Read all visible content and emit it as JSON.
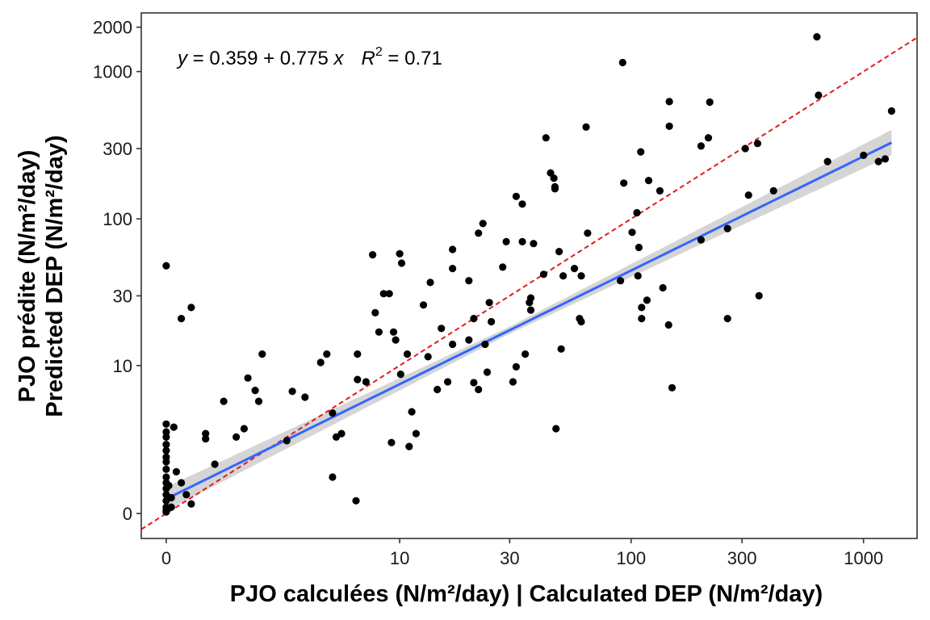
{
  "chart_data": {
    "type": "scatter",
    "title": "",
    "xlabel": "PJO calculées (N/m²/day) | Calculated DEP (N/m²/day)",
    "ylabel_line1": "PJO prédite (N/m²/day)",
    "ylabel_line2": "Predicted DEP (N/m²/day)",
    "scale": "pseudo-log (asinh)",
    "xlim": [
      -0.5,
      1700
    ],
    "ylim": [
      -0.8,
      2500
    ],
    "x_ticks": [
      0,
      10,
      30,
      100,
      300,
      1000
    ],
    "x_tick_labels": [
      "0",
      "10",
      "30",
      "100",
      "300",
      "1000"
    ],
    "y_ticks": [
      0,
      10,
      30,
      100,
      300,
      1000,
      2000
    ],
    "y_tick_labels": [
      "0",
      "10",
      "30",
      "100",
      "300",
      "1000",
      "2000"
    ],
    "equation": {
      "y_var": "y",
      "equals": " = ",
      "coef_text": "0.359 + 0.775 ",
      "x_var": "x",
      "r_var": "R",
      "r_sup": "2",
      "r_value": " = 0.71"
    },
    "fit": {
      "intercept": 0.359,
      "slope": 0.775,
      "color": "#3366ff",
      "band_color": "#d3d3d3"
    },
    "identity_line": {
      "slope": 1,
      "color": "#e41a1c",
      "style": "dashed"
    },
    "point_color": "#000000",
    "points": [
      [
        0,
        48
      ],
      [
        0,
        3.8
      ],
      [
        0,
        3.3
      ],
      [
        0,
        3.0
      ],
      [
        0,
        2.6
      ],
      [
        0,
        2.3
      ],
      [
        0,
        2.0
      ],
      [
        0,
        1.8
      ],
      [
        0,
        1.5
      ],
      [
        0,
        1.2
      ],
      [
        0,
        1.0
      ],
      [
        0,
        0.8
      ],
      [
        0,
        0.6
      ],
      [
        0,
        0.4
      ],
      [
        0,
        0.2
      ],
      [
        0,
        0.1
      ],
      [
        0,
        0.05
      ],
      [
        0.05,
        0.9
      ],
      [
        0.1,
        0.5
      ],
      [
        0.1,
        0.2
      ],
      [
        0.15,
        3.6
      ],
      [
        0.2,
        1.4
      ],
      [
        0.3,
        1.0
      ],
      [
        0.4,
        0.6
      ],
      [
        0.5,
        0.3
      ],
      [
        0.3,
        21
      ],
      [
        0.5,
        25
      ],
      [
        0.8,
        2.9
      ],
      [
        0.8,
        3.2
      ],
      [
        1.0,
        1.7
      ],
      [
        1.2,
        5.6
      ],
      [
        1.5,
        3.0
      ],
      [
        1.7,
        3.5
      ],
      [
        1.8,
        8.2
      ],
      [
        2.0,
        6.7
      ],
      [
        2.1,
        5.6
      ],
      [
        2.2,
        12
      ],
      [
        3.0,
        2.8
      ],
      [
        3.2,
        6.6
      ],
      [
        3.7,
        6.0
      ],
      [
        4.4,
        10.5
      ],
      [
        4.7,
        12
      ],
      [
        5.0,
        4.6
      ],
      [
        5.0,
        1.2
      ],
      [
        5.2,
        3.0
      ],
      [
        5.5,
        3.2
      ],
      [
        6.4,
        0.4
      ],
      [
        6.5,
        12
      ],
      [
        6.5,
        8.0
      ],
      [
        7.1,
        7.7
      ],
      [
        7.6,
        57
      ],
      [
        7.8,
        23
      ],
      [
        8.1,
        17
      ],
      [
        8.5,
        31
      ],
      [
        9.0,
        31
      ],
      [
        9.2,
        2.7
      ],
      [
        9.4,
        17
      ],
      [
        9.6,
        15
      ],
      [
        10.0,
        58
      ],
      [
        10.1,
        8.7
      ],
      [
        10.2,
        50
      ],
      [
        10.8,
        12
      ],
      [
        11.0,
        2.5
      ],
      [
        11.3,
        4.7
      ],
      [
        11.8,
        3.2
      ],
      [
        12.7,
        26
      ],
      [
        13.3,
        11.5
      ],
      [
        13.6,
        37
      ],
      [
        14.6,
        6.8
      ],
      [
        15.2,
        18
      ],
      [
        16.2,
        7.7
      ],
      [
        17.0,
        62
      ],
      [
        17.0,
        46
      ],
      [
        17.0,
        14
      ],
      [
        20.0,
        38
      ],
      [
        20.0,
        15
      ],
      [
        21.0,
        21
      ],
      [
        21.0,
        7.6
      ],
      [
        22.0,
        6.8
      ],
      [
        22.0,
        80
      ],
      [
        23.0,
        93
      ],
      [
        23.5,
        14
      ],
      [
        24.0,
        9.0
      ],
      [
        24.5,
        27
      ],
      [
        25.0,
        20
      ],
      [
        28.0,
        47
      ],
      [
        29.0,
        70
      ],
      [
        31.0,
        7.7
      ],
      [
        32.0,
        9.8
      ],
      [
        32.0,
        142
      ],
      [
        34.0,
        126
      ],
      [
        34.0,
        70
      ],
      [
        35.0,
        12
      ],
      [
        36.5,
        27
      ],
      [
        37.0,
        29
      ],
      [
        37.0,
        24
      ],
      [
        38.0,
        68
      ],
      [
        42.0,
        42
      ],
      [
        43.0,
        355
      ],
      [
        45.0,
        205
      ],
      [
        46.5,
        189
      ],
      [
        47.0,
        165
      ],
      [
        47.0,
        160
      ],
      [
        47.5,
        3.5
      ],
      [
        49.0,
        60
      ],
      [
        50.0,
        13
      ],
      [
        51.0,
        41
      ],
      [
        57.0,
        46
      ],
      [
        60.0,
        21
      ],
      [
        61.0,
        20
      ],
      [
        61.0,
        41
      ],
      [
        64.0,
        420
      ],
      [
        65.0,
        80
      ],
      [
        90.0,
        38
      ],
      [
        92.0,
        1150
      ],
      [
        93.0,
        175
      ],
      [
        101.0,
        81
      ],
      [
        106.0,
        110
      ],
      [
        107.0,
        41
      ],
      [
        108.0,
        64
      ],
      [
        110.0,
        285
      ],
      [
        111.0,
        25
      ],
      [
        111.0,
        21
      ],
      [
        117.0,
        28
      ],
      [
        119.0,
        182
      ],
      [
        133.0,
        155
      ],
      [
        137.0,
        34
      ],
      [
        145.0,
        19
      ],
      [
        146.0,
        625
      ],
      [
        146.0,
        425
      ],
      [
        150.0,
        7.0
      ],
      [
        200.0,
        312
      ],
      [
        200.0,
        72
      ],
      [
        215.0,
        355
      ],
      [
        218.0,
        620
      ],
      [
        260.0,
        86
      ],
      [
        260.0,
        21
      ],
      [
        310.0,
        300
      ],
      [
        320.0,
        145
      ],
      [
        350.0,
        325
      ],
      [
        355.0,
        30
      ],
      [
        410.0,
        155
      ],
      [
        630.0,
        1720
      ],
      [
        640.0,
        690
      ],
      [
        700.0,
        245
      ],
      [
        1000.0,
        270
      ],
      [
        1160.0,
        245
      ],
      [
        1240.0,
        255
      ],
      [
        1320.0,
        540
      ]
    ]
  }
}
